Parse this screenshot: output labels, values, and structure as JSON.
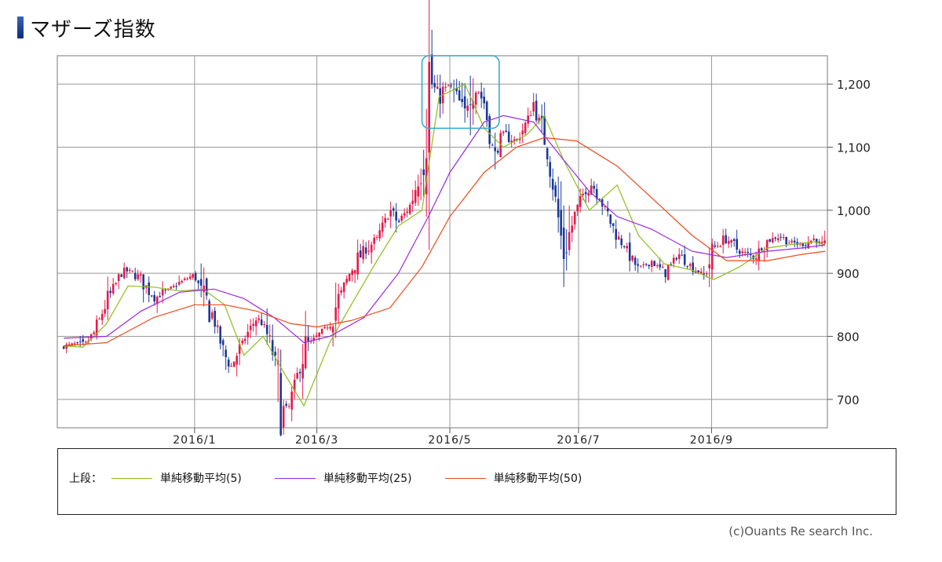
{
  "title": "マザーズ指数",
  "credit": "(c)Ouants Re search Inc.",
  "legend": {
    "prefix": "上段：",
    "items": [
      {
        "label": "単純移動平均(5)",
        "color": "#8cbf1a"
      },
      {
        "label": "単純移動平均(25)",
        "color": "#9a28e0"
      },
      {
        "label": "単純移動平均(50)",
        "color": "#ee4a1a"
      }
    ]
  },
  "colors": {
    "up": "#e8194a",
    "down": "#1a3a9a",
    "grid": "#999999",
    "highlight": "#3aaad0"
  },
  "chart_data": {
    "type": "candlestick",
    "xlabel": "",
    "ylabel": "",
    "ylim": [
      655,
      1245
    ],
    "y_ticks": [
      700,
      800,
      900,
      1000,
      1100,
      1200
    ],
    "y_tick_labels": [
      "700",
      "800",
      "900",
      "1,000",
      "1,100",
      "1,200"
    ],
    "x_tick_labels": [
      "2016/1",
      "2016/3",
      "2016/5",
      "2016/7",
      "2016/9"
    ],
    "x_tick_dates": [
      "2016-01-04",
      "2016-03-01",
      "2016-05-02",
      "2016-07-01",
      "2016-09-01"
    ],
    "x_range": [
      "2015-11-01",
      "2016-10-25"
    ],
    "grid": true,
    "highlight_box": {
      "from": "2016-04-19",
      "to": "2016-05-25",
      "y_range": [
        1130,
        1245
      ]
    },
    "close_series": {
      "dates": [
        "2015-11-04",
        "2015-11-09",
        "2015-11-13",
        "2015-11-18",
        "2015-11-24",
        "2015-11-30",
        "2015-12-04",
        "2015-12-10",
        "2015-12-16",
        "2015-12-22",
        "2015-12-28",
        "2016-01-04",
        "2016-01-08",
        "2016-01-13",
        "2016-01-18",
        "2016-01-21",
        "2016-01-27",
        "2016-02-02",
        "2016-02-05",
        "2016-02-10",
        "2016-02-15",
        "2016-02-18",
        "2016-02-24",
        "2016-03-01",
        "2016-03-07",
        "2016-03-11",
        "2016-03-17",
        "2016-03-23",
        "2016-03-29",
        "2016-04-04",
        "2016-04-08",
        "2016-04-14",
        "2016-04-19",
        "2016-04-22",
        "2016-04-27",
        "2016-05-02",
        "2016-05-09",
        "2016-05-12",
        "2016-05-18",
        "2016-05-23",
        "2016-05-27",
        "2016-06-02",
        "2016-06-07",
        "2016-06-10",
        "2016-06-15",
        "2016-06-20",
        "2016-06-24",
        "2016-06-30",
        "2016-07-06",
        "2016-07-12",
        "2016-07-19",
        "2016-07-25",
        "2016-07-29",
        "2016-08-04",
        "2016-08-10",
        "2016-08-17",
        "2016-08-23",
        "2016-08-29",
        "2016-09-02",
        "2016-09-08",
        "2016-09-14",
        "2016-09-21",
        "2016-09-27",
        "2016-10-03",
        "2016-10-07",
        "2016-10-13",
        "2016-10-19",
        "2016-10-24"
      ],
      "values": [
        783,
        788,
        782,
        805,
        855,
        895,
        905,
        892,
        860,
        872,
        885,
        898,
        860,
        830,
        770,
        752,
        795,
        830,
        820,
        770,
        665,
        700,
        780,
        800,
        820,
        860,
        905,
        935,
        955,
        1000,
        980,
        1010,
        1080,
        1210,
        1180,
        1200,
        1150,
        1210,
        1170,
        1080,
        1120,
        1110,
        1140,
        1170,
        1120,
        1020,
        930,
        1000,
        1050,
        1010,
        960,
        930,
        905,
        920,
        900,
        930,
        910,
        895,
        940,
        955,
        935,
        925,
        950,
        960,
        950,
        945,
        955,
        940
      ]
    },
    "series": [
      {
        "name": "単純移動平均(5)",
        "dates": [
          "2015-11-04",
          "2015-11-13",
          "2015-11-24",
          "2015-12-04",
          "2015-12-16",
          "2015-12-28",
          "2016-01-08",
          "2016-01-18",
          "2016-01-27",
          "2016-02-05",
          "2016-02-15",
          "2016-02-24",
          "2016-03-07",
          "2016-03-17",
          "2016-03-29",
          "2016-04-08",
          "2016-04-19",
          "2016-04-27",
          "2016-05-09",
          "2016-05-18",
          "2016-05-27",
          "2016-06-07",
          "2016-06-15",
          "2016-06-24",
          "2016-07-06",
          "2016-07-19",
          "2016-07-29",
          "2016-08-10",
          "2016-08-23",
          "2016-09-02",
          "2016-09-14",
          "2016-09-27",
          "2016-10-07",
          "2016-10-19",
          "2016-10-24"
        ],
        "values": [
          785,
          783,
          820,
          880,
          878,
          872,
          875,
          850,
          770,
          800,
          740,
          690,
          790,
          850,
          920,
          975,
          1000,
          1180,
          1200,
          1130,
          1100,
          1120,
          1150,
          1080,
          1000,
          1040,
          960,
          915,
          905,
          890,
          910,
          940,
          945,
          950,
          945
        ]
      },
      {
        "name": "単純移動平均(25)",
        "dates": [
          "2015-11-04",
          "2015-11-24",
          "2015-12-10",
          "2015-12-28",
          "2016-01-13",
          "2016-01-27",
          "2016-02-10",
          "2016-02-24",
          "2016-03-07",
          "2016-03-23",
          "2016-04-08",
          "2016-04-22",
          "2016-05-02",
          "2016-05-18",
          "2016-05-27",
          "2016-06-10",
          "2016-06-24",
          "2016-07-06",
          "2016-07-19",
          "2016-08-04",
          "2016-08-23",
          "2016-09-08",
          "2016-09-27",
          "2016-10-13",
          "2016-10-24"
        ],
        "values": [
          797,
          800,
          840,
          870,
          875,
          860,
          830,
          790,
          800,
          830,
          900,
          990,
          1060,
          1140,
          1150,
          1140,
          1080,
          1030,
          990,
          970,
          935,
          925,
          935,
          940,
          945
        ]
      },
      {
        "name": "単純移動平均(50)",
        "dates": [
          "2015-11-04",
          "2015-11-24",
          "2015-12-16",
          "2016-01-04",
          "2016-01-18",
          "2016-02-02",
          "2016-02-18",
          "2016-03-01",
          "2016-03-17",
          "2016-04-04",
          "2016-04-19",
          "2016-05-02",
          "2016-05-18",
          "2016-06-02",
          "2016-06-15",
          "2016-06-30",
          "2016-07-19",
          "2016-08-04",
          "2016-08-23",
          "2016-09-08",
          "2016-09-27",
          "2016-10-13",
          "2016-10-24"
        ],
        "values": [
          785,
          790,
          830,
          850,
          850,
          840,
          820,
          815,
          825,
          845,
          910,
          990,
          1060,
          1100,
          1115,
          1110,
          1070,
          1020,
          960,
          920,
          920,
          930,
          935
        ]
      }
    ]
  }
}
